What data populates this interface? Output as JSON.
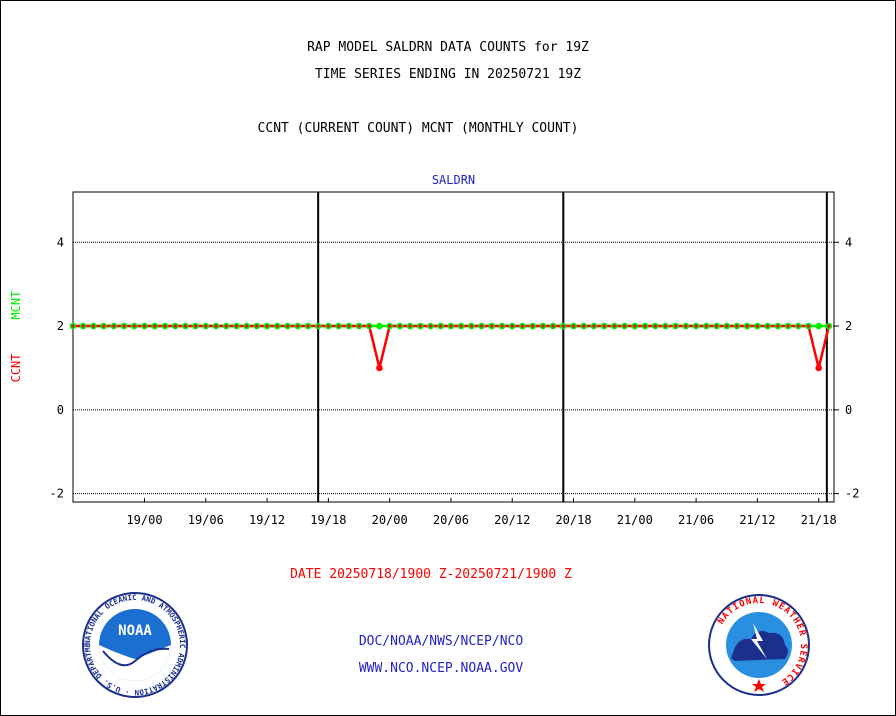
{
  "header": {
    "title1": "RAP MODEL SALDRN DATA COUNTS for 19Z",
    "title2": "TIME SERIES ENDING IN 20250721 19Z",
    "legend_line": "CCNT (CURRENT COUNT) MCNT (MONTHLY COUNT)"
  },
  "footer": {
    "date_range": "DATE 20250718/1900 Z-20250721/1900 Z",
    "org": "DOC/NOAA/NWS/NCEP/NCO",
    "url": "WWW.NCO.NCEP.NOAA.GOV"
  },
  "logos": {
    "noaa_text": "NOAA",
    "noaa_ring": "NATIONAL OCEANIC AND ATMOSPHERIC ADMINISTRATION · U.S. DEPARTMENT OF COMMERCE",
    "nws_ring": "NATIONAL WEATHER SERVICE"
  },
  "colors": {
    "ccnt": "#ff0000",
    "mcnt": "#00ee00",
    "panel_title": "#2323c8",
    "date": "#ff0000"
  },
  "chart_data": {
    "type": "line",
    "title": "SALDRN",
    "ylabel_ccnt": "CCNT",
    "ylabel_mcnt": "MCNT",
    "ylim": [
      -2.2,
      5.2
    ],
    "yticks": [
      -2,
      0,
      2,
      4
    ],
    "ytick_labels": [
      "-2",
      "0",
      "2",
      "4"
    ],
    "x_unit": "hours after 20250718/1700 Z",
    "xlim": [
      0,
      74.5
    ],
    "xticks": [
      {
        "t": 7,
        "label": "19/00"
      },
      {
        "t": 13,
        "label": "19/06"
      },
      {
        "t": 19,
        "label": "19/12"
      },
      {
        "t": 25,
        "label": "19/18"
      },
      {
        "t": 31,
        "label": "20/00"
      },
      {
        "t": 37,
        "label": "20/06"
      },
      {
        "t": 43,
        "label": "20/12"
      },
      {
        "t": 49,
        "label": "20/18"
      },
      {
        "t": 55,
        "label": "21/00"
      },
      {
        "t": 61,
        "label": "21/06"
      },
      {
        "t": 67,
        "label": "21/12"
      },
      {
        "t": 73,
        "label": "21/18"
      }
    ],
    "day_boundaries": [
      24,
      48,
      73.8
    ],
    "grid": "horizontal dotted at 4, 0, -2",
    "series": [
      {
        "name": "CCNT",
        "step_hours": 1,
        "x_start": 0,
        "values": [
          2,
          2,
          2,
          2,
          2,
          2,
          2,
          2,
          2,
          2,
          2,
          2,
          2,
          2,
          2,
          2,
          2,
          2,
          2,
          2,
          2,
          2,
          2,
          2,
          2,
          2,
          2,
          2,
          2,
          2,
          1,
          2,
          2,
          2,
          2,
          2,
          2,
          2,
          2,
          2,
          2,
          2,
          2,
          2,
          2,
          2,
          2,
          2,
          2,
          2,
          2,
          2,
          2,
          2,
          2,
          2,
          2,
          2,
          2,
          2,
          2,
          2,
          2,
          2,
          2,
          2,
          2,
          2,
          2,
          2,
          2,
          2,
          2,
          1,
          2
        ]
      },
      {
        "name": "MCNT",
        "step_hours": 1,
        "x_start": 0,
        "values": [
          2,
          2,
          2,
          2,
          2,
          2,
          2,
          2,
          2,
          2,
          2,
          2,
          2,
          2,
          2,
          2,
          2,
          2,
          2,
          2,
          2,
          2,
          2,
          2,
          2,
          2,
          2,
          2,
          2,
          2,
          2,
          2,
          2,
          2,
          2,
          2,
          2,
          2,
          2,
          2,
          2,
          2,
          2,
          2,
          2,
          2,
          2,
          2,
          2,
          2,
          2,
          2,
          2,
          2,
          2,
          2,
          2,
          2,
          2,
          2,
          2,
          2,
          2,
          2,
          2,
          2,
          2,
          2,
          2,
          2,
          2,
          2,
          2,
          2,
          2
        ]
      }
    ]
  }
}
